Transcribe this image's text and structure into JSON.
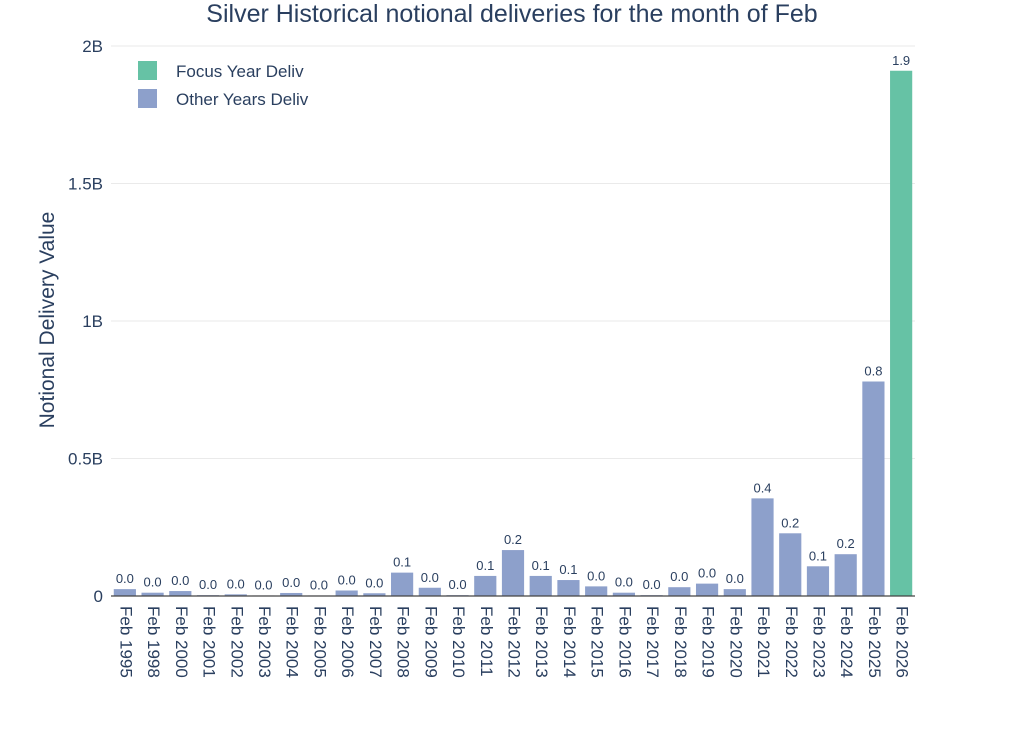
{
  "chart_data": {
    "type": "bar",
    "title": "Silver Historical notional deliveries for the month of Feb",
    "xlabel": "",
    "ylabel": "Notional Delivery Value",
    "ylim": [
      0,
      2000000000
    ],
    "yticks": [
      {
        "value": 0,
        "label": "0"
      },
      {
        "value": 500000000,
        "label": "0.5B"
      },
      {
        "value": 1000000000,
        "label": "1B"
      },
      {
        "value": 1500000000,
        "label": "1.5B"
      },
      {
        "value": 2000000000,
        "label": "2B"
      }
    ],
    "grid": true,
    "legend_position": "top-left",
    "categories": [
      "Feb 1995",
      "Feb 1998",
      "Feb 2000",
      "Feb 2001",
      "Feb 2002",
      "Feb 2003",
      "Feb 2004",
      "Feb 2005",
      "Feb 2006",
      "Feb 2007",
      "Feb 2008",
      "Feb 2009",
      "Feb 2010",
      "Feb 2011",
      "Feb 2012",
      "Feb 2013",
      "Feb 2014",
      "Feb 2015",
      "Feb 2016",
      "Feb 2017",
      "Feb 2018",
      "Feb 2019",
      "Feb 2020",
      "Feb 2021",
      "Feb 2022",
      "Feb 2023",
      "Feb 2024",
      "Feb 2025",
      "Feb 2026"
    ],
    "series": [
      {
        "name": "Focus Year Deliv",
        "color": "#66c2a5",
        "values": [
          null,
          null,
          null,
          null,
          null,
          null,
          null,
          null,
          null,
          null,
          null,
          null,
          null,
          null,
          null,
          null,
          null,
          null,
          null,
          null,
          null,
          null,
          null,
          null,
          null,
          null,
          null,
          null,
          1910000000
        ],
        "labels": [
          "",
          "",
          "",
          "",
          "",
          "",
          "",
          "",
          "",
          "",
          "",
          "",
          "",
          "",
          "",
          "",
          "",
          "",
          "",
          "",
          "",
          "",
          "",
          "",
          "",
          "",
          "",
          "",
          "1.9"
        ]
      },
      {
        "name": "Other Years Deliv",
        "color": "#8da0cb",
        "values": [
          25000000,
          12000000,
          18000000,
          3000000,
          6000000,
          2000000,
          11000000,
          2000000,
          20000000,
          10000000,
          85000000,
          30000000,
          3000000,
          73000000,
          167000000,
          73000000,
          58000000,
          35000000,
          12000000,
          3000000,
          32000000,
          45000000,
          25000000,
          355000000,
          228000000,
          108000000,
          152000000,
          780000000,
          null
        ],
        "labels": [
          "0.0",
          "0.0",
          "0.0",
          "0.0",
          "0.0",
          "0.0",
          "0.0",
          "0.0",
          "0.0",
          "0.0",
          "0.1",
          "0.0",
          "0.0",
          "0.1",
          "0.2",
          "0.1",
          "0.1",
          "0.0",
          "0.0",
          "0.0",
          "0.0",
          "0.0",
          "0.0",
          "0.4",
          "0.2",
          "0.1",
          "0.2",
          "0.8",
          ""
        ]
      }
    ]
  }
}
